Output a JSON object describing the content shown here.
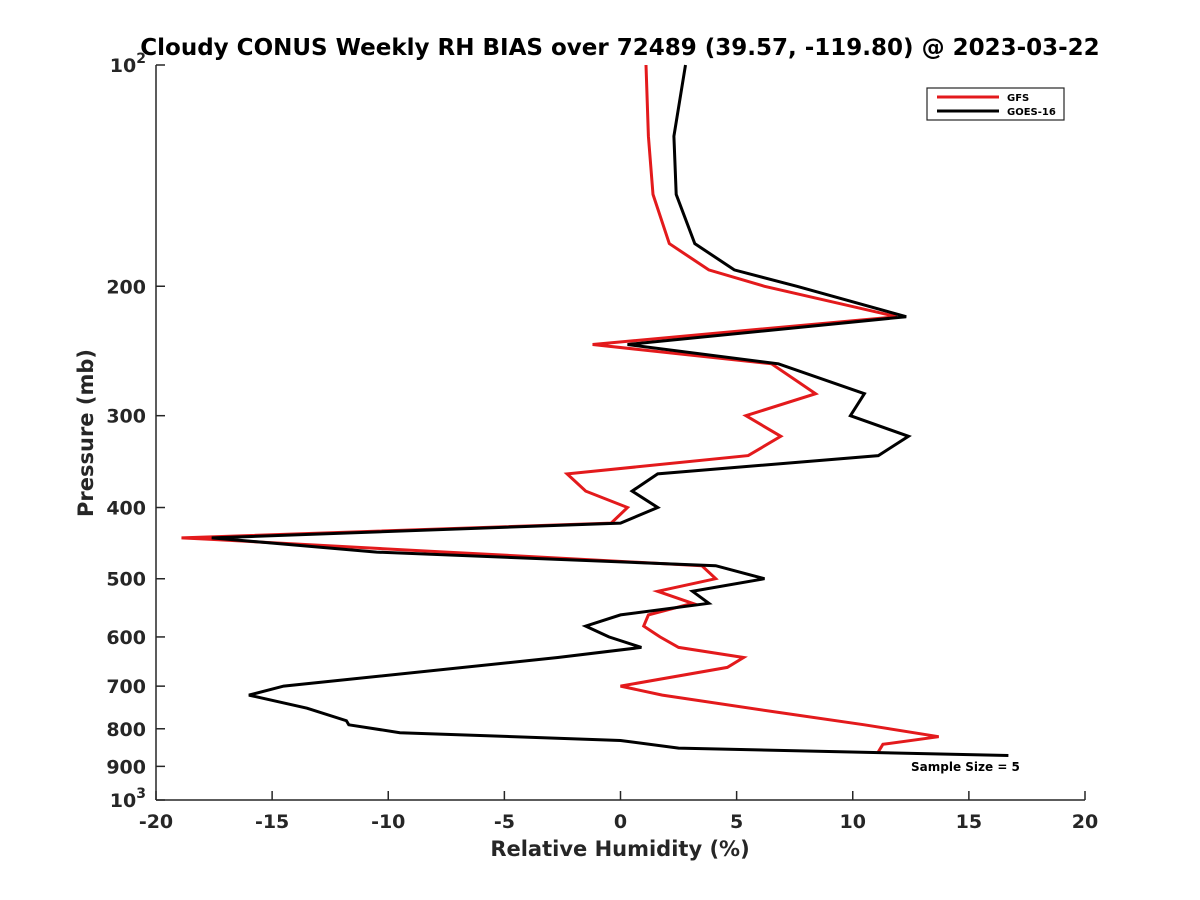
{
  "chart_data": {
    "type": "line",
    "title": "Cloudy CONUS Weekly RH BIAS over 72489 (39.57, -119.80) @ 2023-03-22",
    "xlabel": "Relative Humidity (%)",
    "ylabel": "Pressure (mb)",
    "xlim": [
      -20,
      20
    ],
    "ylim": [
      100,
      1000
    ],
    "y_scale": "log",
    "y_inverted": true,
    "x_ticks": [
      -20,
      -15,
      -10,
      -5,
      0,
      5,
      10,
      15,
      20
    ],
    "x_tick_labels": [
      "-20",
      "-15",
      "-10",
      "-5",
      "0",
      "5",
      "10",
      "15",
      "20"
    ],
    "y_ticks": [
      100,
      200,
      300,
      400,
      500,
      600,
      700,
      800,
      900,
      1000
    ],
    "y_tick_labels": [
      {
        "base": "10",
        "exp": "2"
      },
      {
        "base": "200",
        "exp": ""
      },
      {
        "base": "300",
        "exp": ""
      },
      {
        "base": "400",
        "exp": ""
      },
      {
        "base": "500",
        "exp": ""
      },
      {
        "base": "600",
        "exp": ""
      },
      {
        "base": "700",
        "exp": ""
      },
      {
        "base": "800",
        "exp": ""
      },
      {
        "base": "900",
        "exp": ""
      },
      {
        "base": "10",
        "exp": "3"
      }
    ],
    "grid": false,
    "legend_position": "top-right",
    "annotation": "Sample Size = 5",
    "series": [
      {
        "name": "GFS",
        "color": "#e31a1c",
        "points": [
          [
            1.1,
            100
          ],
          [
            1.2,
            125
          ],
          [
            1.4,
            150
          ],
          [
            2.1,
            175
          ],
          [
            3.8,
            190
          ],
          [
            6.2,
            200
          ],
          [
            11.9,
            220
          ],
          [
            -1.2,
            240
          ],
          [
            6.5,
            255
          ],
          [
            8.4,
            280
          ],
          [
            5.4,
            300
          ],
          [
            6.9,
            320
          ],
          [
            5.5,
            340
          ],
          [
            -2.3,
            360
          ],
          [
            -1.5,
            380
          ],
          [
            0.3,
            400
          ],
          [
            -0.4,
            420
          ],
          [
            -18.9,
            440
          ],
          [
            -17.6,
            442
          ],
          [
            -7.5,
            460
          ],
          [
            3.5,
            480
          ],
          [
            4.1,
            500
          ],
          [
            1.6,
            520
          ],
          [
            3.1,
            540
          ],
          [
            1.2,
            560
          ],
          [
            1.0,
            580
          ],
          [
            1.7,
            600
          ],
          [
            2.5,
            620
          ],
          [
            5.3,
            640
          ],
          [
            4.6,
            660
          ],
          [
            0.0,
            700
          ],
          [
            1.8,
            720
          ],
          [
            6.8,
            760
          ],
          [
            10.5,
            790
          ],
          [
            13.7,
            820
          ],
          [
            11.3,
            840
          ],
          [
            11.1,
            860
          ]
        ]
      },
      {
        "name": "GOES-16",
        "color": "#000000",
        "points": [
          [
            2.8,
            100
          ],
          [
            2.3,
            125
          ],
          [
            2.4,
            150
          ],
          [
            3.2,
            175
          ],
          [
            4.9,
            190
          ],
          [
            7.6,
            200
          ],
          [
            12.3,
            220
          ],
          [
            0.3,
            240
          ],
          [
            6.8,
            255
          ],
          [
            10.5,
            280
          ],
          [
            9.9,
            300
          ],
          [
            12.4,
            320
          ],
          [
            11.1,
            340
          ],
          [
            1.6,
            360
          ],
          [
            0.5,
            380
          ],
          [
            1.6,
            400
          ],
          [
            0.0,
            420
          ],
          [
            -17.6,
            440
          ],
          [
            -10.5,
            460
          ],
          [
            4.1,
            480
          ],
          [
            6.2,
            500
          ],
          [
            3.1,
            520
          ],
          [
            3.8,
            540
          ],
          [
            0.0,
            560
          ],
          [
            -1.5,
            580
          ],
          [
            -0.5,
            600
          ],
          [
            0.9,
            620
          ],
          [
            -2.7,
            640
          ],
          [
            -14.5,
            700
          ],
          [
            -16.0,
            720
          ],
          [
            -13.5,
            750
          ],
          [
            -11.8,
            780
          ],
          [
            -11.7,
            790
          ],
          [
            -9.5,
            810
          ],
          [
            0.0,
            830
          ],
          [
            2.5,
            850
          ],
          [
            16.7,
            870
          ]
        ]
      }
    ]
  }
}
